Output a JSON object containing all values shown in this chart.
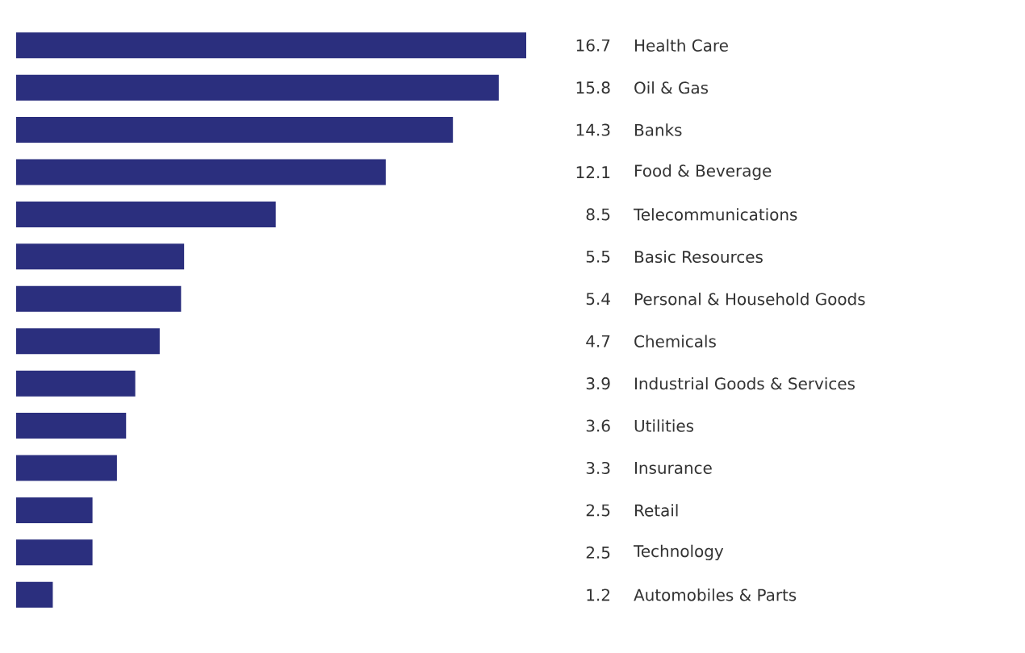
{
  "chart_data": {
    "type": "bar",
    "orientation": "horizontal",
    "data_labels": true,
    "color": "#2b2f7e",
    "categories": [
      "Health Care",
      "Oil & Gas",
      "Banks",
      "Food & Beverage",
      "Telecommunications",
      "Basic Resources",
      "Personal & Household Goods",
      "Chemicals",
      "Industrial Goods & Services",
      "Utilities",
      "Insurance",
      "Retail",
      "Technology",
      "Automobiles & Parts"
    ],
    "values": [
      16.7,
      15.8,
      14.3,
      12.1,
      8.5,
      5.5,
      5.4,
      4.7,
      3.9,
      3.6,
      3.3,
      2.5,
      2.5,
      1.2
    ]
  }
}
